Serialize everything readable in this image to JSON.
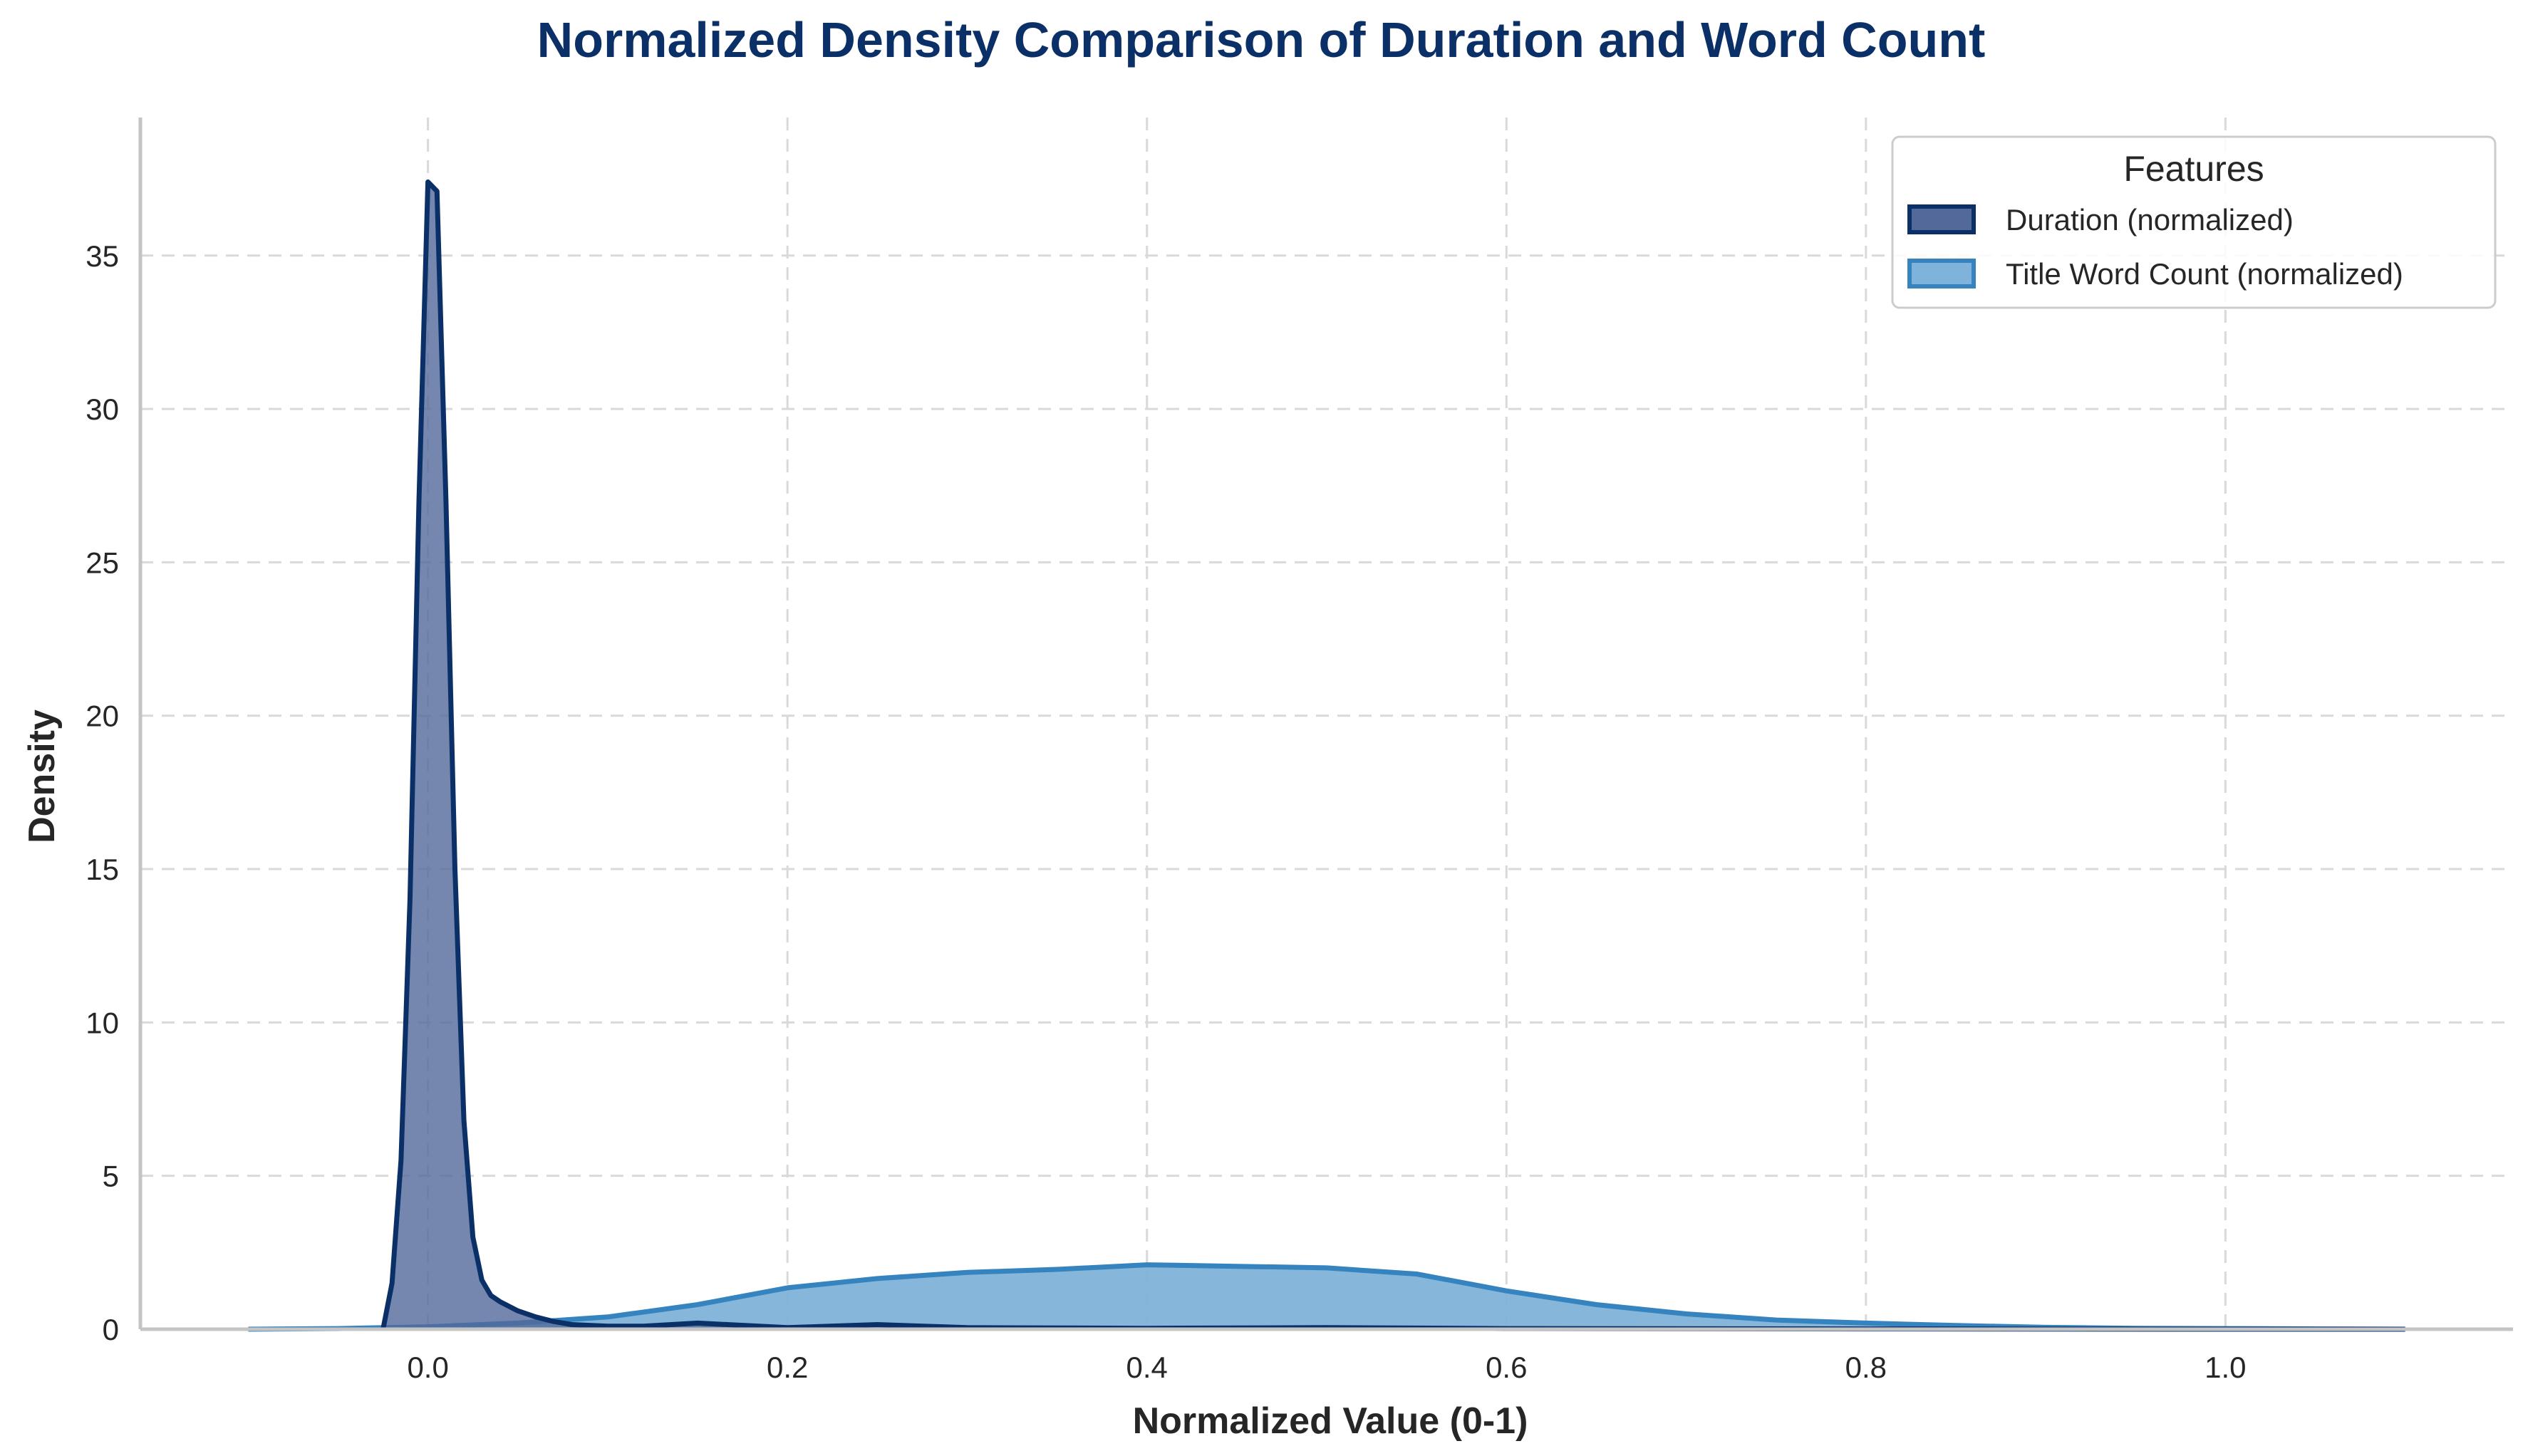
{
  "colors": {
    "duration_line": "#0b3068",
    "duration_fill": "#52699a",
    "wordcount_line": "#3583bf",
    "wordcount_fill": "#7fb3d9",
    "title": "#0b3068"
  },
  "chart_data": {
    "type": "area",
    "title": "Normalized Density Comparison of Duration and Word Count",
    "xlabel": "Normalized Value (0-1)",
    "ylabel": "Density",
    "xlim": [
      -0.16,
      1.16
    ],
    "ylim": [
      0,
      39.5
    ],
    "xticks": [
      0.0,
      0.2,
      0.4,
      0.6,
      0.8,
      1.0
    ],
    "xtick_labels": [
      "0.0",
      "0.2",
      "0.4",
      "0.6",
      "0.8",
      "1.0"
    ],
    "yticks": [
      0,
      5,
      10,
      15,
      20,
      25,
      30,
      35
    ],
    "ytick_labels": [
      "0",
      "5",
      "10",
      "15",
      "20",
      "25",
      "30",
      "35"
    ],
    "grid": true,
    "legend": {
      "title": "Features",
      "placement": "top-right"
    },
    "series": [
      {
        "name": "Duration (normalized)",
        "x": [
          -0.025,
          -0.02,
          -0.015,
          -0.01,
          -0.005,
          0.0,
          0.005,
          0.01,
          0.015,
          0.02,
          0.025,
          0.03,
          0.035,
          0.04,
          0.05,
          0.06,
          0.07,
          0.08,
          0.1,
          0.12,
          0.15,
          0.2,
          0.25,
          0.3,
          0.4,
          0.5,
          0.6,
          0.8,
          1.0,
          1.1
        ],
        "y": [
          0.0,
          1.5,
          5.5,
          14.0,
          27.0,
          37.4,
          37.1,
          27.0,
          15.0,
          6.8,
          3.0,
          1.6,
          1.1,
          0.9,
          0.6,
          0.4,
          0.25,
          0.15,
          0.1,
          0.1,
          0.2,
          0.05,
          0.15,
          0.05,
          0.03,
          0.05,
          0.02,
          0.01,
          0.0,
          0.0
        ]
      },
      {
        "name": "Title Word Count (normalized)",
        "x": [
          -0.1,
          -0.05,
          0.0,
          0.05,
          0.1,
          0.15,
          0.2,
          0.25,
          0.3,
          0.35,
          0.4,
          0.45,
          0.5,
          0.55,
          0.6,
          0.65,
          0.7,
          0.75,
          0.8,
          0.85,
          0.9,
          0.95,
          1.0,
          1.05,
          1.1
        ],
        "y": [
          0.0,
          0.02,
          0.08,
          0.2,
          0.4,
          0.8,
          1.35,
          1.65,
          1.85,
          1.95,
          2.1,
          2.05,
          2.0,
          1.8,
          1.25,
          0.8,
          0.5,
          0.3,
          0.2,
          0.12,
          0.06,
          0.03,
          0.02,
          0.01,
          0.0
        ]
      }
    ]
  }
}
